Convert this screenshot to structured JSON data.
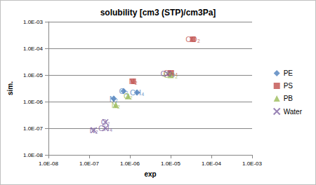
{
  "chart_data": {
    "type": "scatter",
    "title": "solubility [cm3 (STP)/cm3Pa]",
    "x_label": "exp",
    "y_label": "sim.",
    "log": true,
    "grid": true,
    "legend": "right",
    "xlim": [
      1e-08,
      0.001
    ],
    "ylim": [
      1e-08,
      0.001
    ],
    "xticks": [
      {
        "value": 1e-08,
        "label": "1.0E-08"
      },
      {
        "value": 1e-07,
        "label": "1.0E-07"
      },
      {
        "value": 1e-06,
        "label": "1.0E-06"
      },
      {
        "value": 1e-05,
        "label": "1.0E-05"
      },
      {
        "value": 0.0001,
        "label": "1.0E-04"
      },
      {
        "value": 0.001,
        "label": "1.0E-03"
      }
    ],
    "yticks": [
      {
        "value": 1e-08,
        "label": "1.0E-08"
      },
      {
        "value": 1e-07,
        "label": "1.0E-07"
      },
      {
        "value": 1e-06,
        "label": "1.0E-06"
      },
      {
        "value": 1e-05,
        "label": "1.0E-05"
      },
      {
        "value": 0.0001,
        "label": "1.0E-04"
      },
      {
        "value": 0.001,
        "label": "1.0E-03"
      }
    ],
    "series": [
      {
        "name": "PE",
        "color": "#4f81bd",
        "marker": "diamond",
        "x": [
          4e-07,
          7e-07,
          1.5e-06
        ],
        "values": [
          1.3e-06,
          2.5e-06,
          2.2e-06
        ],
        "labels": [
          "N₂",
          "O₂",
          "CH₄"
        ]
      },
      {
        "name": "PS",
        "color": "#c0504d",
        "marker": "square",
        "x": [
          1.2e-06,
          1e-05,
          3.5e-05
        ],
        "values": [
          5.8e-06,
          1.2e-05,
          0.00022
        ],
        "labels": [
          "N₂",
          "CH₄",
          "CO₂"
        ]
      },
      {
        "name": "PB",
        "color": "#9bbb59",
        "marker": "triangle",
        "x": [
          4.5e-07,
          9e-07,
          1e-05
        ],
        "values": [
          7.5e-07,
          1.6e-06,
          1e-05
        ],
        "labels": [
          "N₂",
          "O₂",
          "CO₂"
        ]
      },
      {
        "name": "Water",
        "color": "#8064a2",
        "marker": "x",
        "x": [
          1.3e-07,
          2.5e-07,
          2.5e-07,
          8.5e-06
        ],
        "values": [
          8.5e-08,
          1.7e-07,
          1e-07,
          1.1e-05
        ],
        "labels": [
          "N₂",
          "O₂",
          "CH₄",
          "CO₂"
        ]
      }
    ]
  }
}
